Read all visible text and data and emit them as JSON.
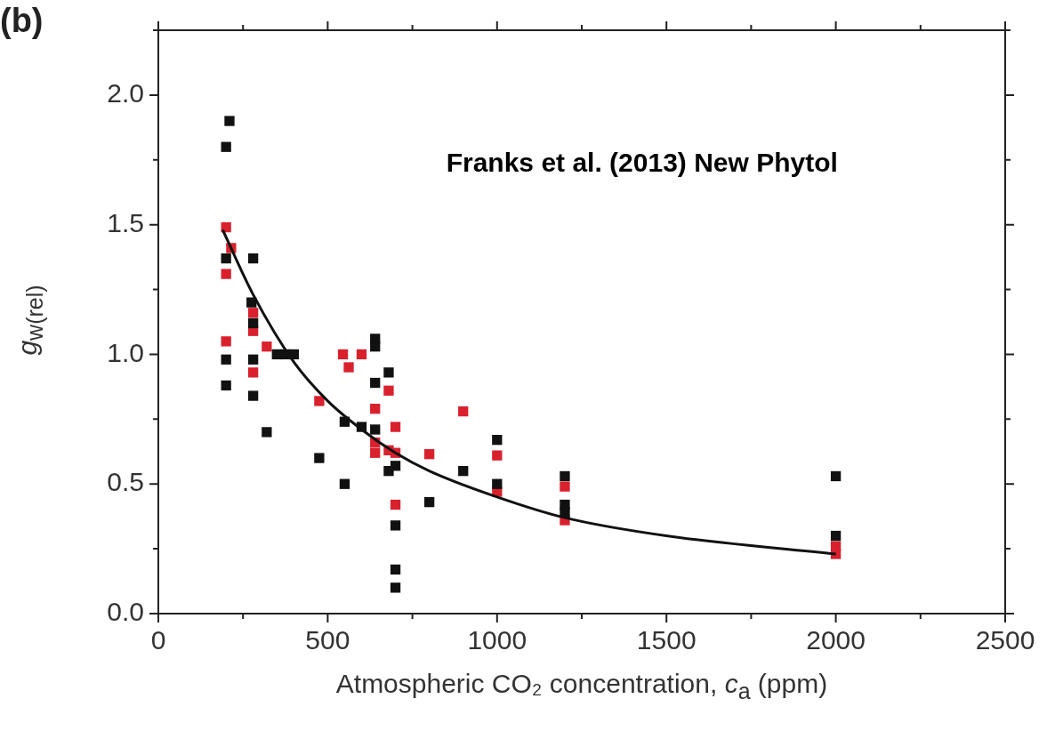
{
  "chart_data": {
    "type": "scatter",
    "title": "(b)",
    "xlabel": "Atmospheric CO₂ concentration, c$_{a}$  (ppm)",
    "ylabel": "g$_{w(rel)}$",
    "annotations": [
      "Franks et al. (2013) New Phytol"
    ],
    "xlim": [
      0,
      2500
    ],
    "xticks": [
      0,
      500,
      1000,
      1500,
      2000,
      2500
    ],
    "ylim": [
      0,
      2.25
    ],
    "yticks": [
      {
        "value": 0,
        "label": "0.0"
      },
      {
        "value": 0.5,
        "label": "0.5"
      },
      {
        "value": 1,
        "label": "1.0"
      },
      {
        "value": 1.5,
        "label": "1.5"
      },
      {
        "value": 2,
        "label": "2.0"
      }
    ],
    "grid": false,
    "legend": false,
    "marker": "square",
    "series": [
      {
        "color": "#111111",
        "x": [
          210,
          200,
          200,
          280,
          275,
          280,
          200,
          280,
          350,
          375,
          400,
          200,
          280,
          320,
          475,
          640,
          640,
          680,
          640,
          550,
          600,
          640,
          1000,
          700,
          680,
          900,
          550,
          1000,
          800,
          700,
          700,
          700,
          1200,
          1200,
          1200,
          2000,
          2000
        ],
        "values": [
          1.9,
          1.8,
          1.37,
          1.37,
          1.2,
          1.12,
          0.98,
          0.98,
          1.0,
          1.0,
          1.0,
          0.88,
          0.84,
          0.7,
          0.6,
          1.06,
          1.03,
          0.93,
          0.89,
          0.74,
          0.72,
          0.71,
          0.67,
          0.57,
          0.55,
          0.55,
          0.5,
          0.5,
          0.43,
          0.34,
          0.17,
          0.1,
          0.53,
          0.42,
          0.39,
          0.53,
          0.3
        ]
      },
      {
        "color": "#d9212e",
        "x": [
          200,
          215,
          200,
          280,
          280,
          200,
          320,
          280,
          475,
          545,
          562,
          600,
          680,
          640,
          900,
          700,
          640,
          640,
          680,
          700,
          800,
          1000,
          1000,
          700,
          1200,
          1200,
          2000,
          2000
        ],
        "values": [
          1.49,
          1.41,
          1.31,
          1.16,
          1.09,
          1.05,
          1.03,
          0.93,
          0.82,
          1.0,
          0.95,
          1.0,
          0.86,
          0.79,
          0.78,
          0.72,
          0.66,
          0.62,
          0.63,
          0.62,
          0.615,
          0.61,
          0.47,
          0.42,
          0.49,
          0.36,
          0.26,
          0.23
        ]
      },
      {
        "type": "line",
        "color": "#111111",
        "marker": "none",
        "x": [
          190,
          280,
          400,
          500,
          600,
          700,
          800,
          1000,
          1200,
          1500,
          2000
        ],
        "values": [
          1.48,
          1.23,
          0.97,
          0.82,
          0.71,
          0.62,
          0.55,
          0.45,
          0.37,
          0.3,
          0.23
        ]
      }
    ]
  }
}
